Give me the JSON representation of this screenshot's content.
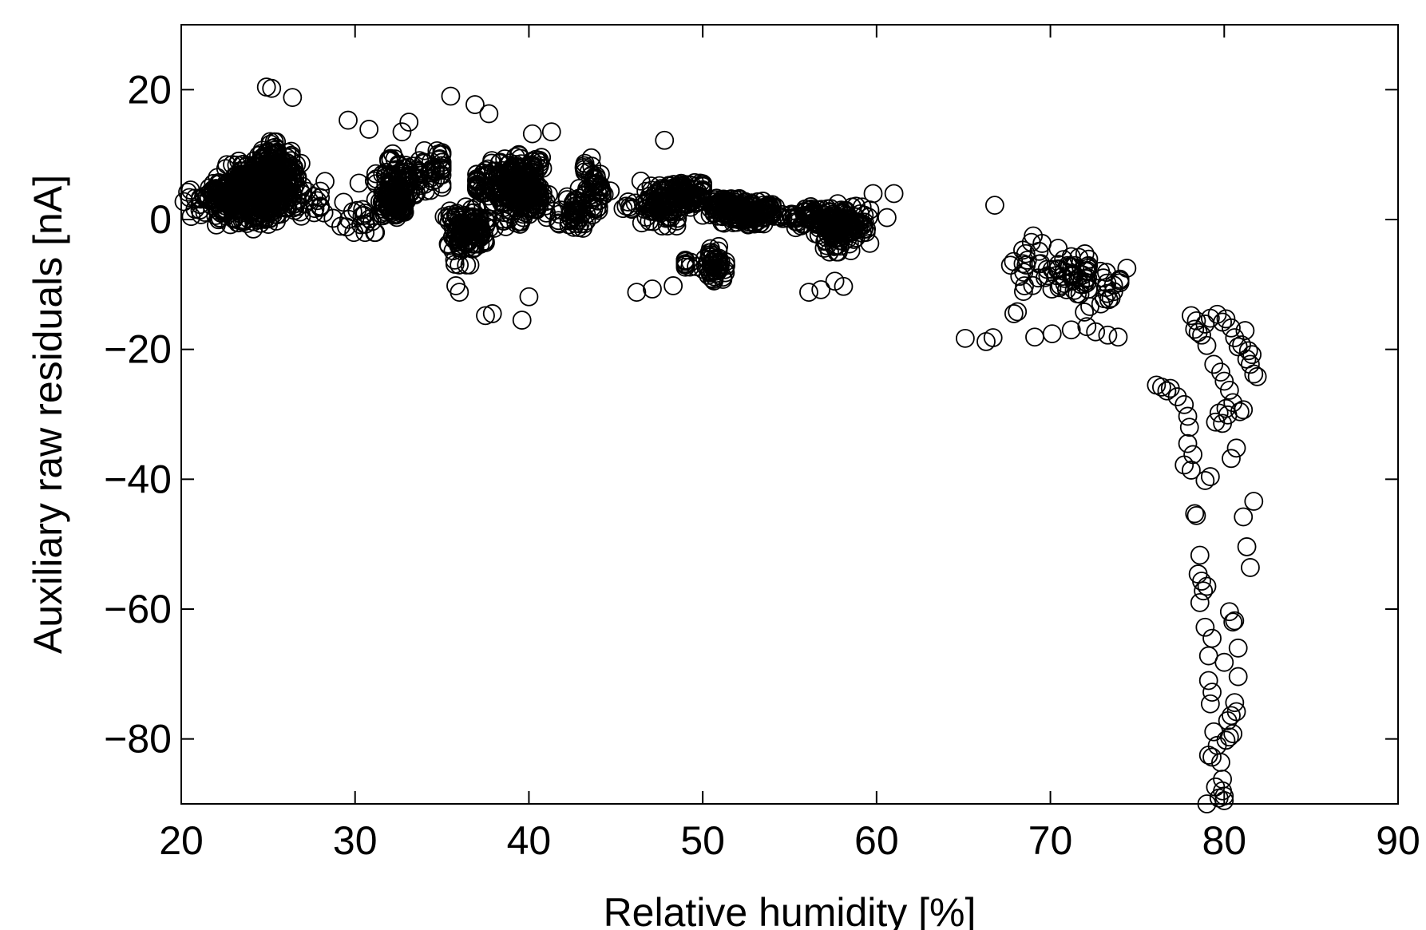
{
  "chart_data": {
    "type": "scatter",
    "title": "",
    "xlabel": "Relative humidity [%]",
    "ylabel": "Auxiliary raw residuals [nA]",
    "xlim": [
      20,
      90
    ],
    "ylim": [
      -90,
      30
    ],
    "xticks": [
      "20",
      "30",
      "40",
      "50",
      "60",
      "70",
      "80",
      "90"
    ],
    "yticks": [
      "20",
      "0",
      "−20",
      "−40",
      "−60",
      "−80"
    ],
    "xtick_values": [
      20,
      30,
      40,
      50,
      60,
      70,
      80,
      90
    ],
    "ytick_values": [
      20,
      0,
      -20,
      -40,
      -60,
      -80
    ],
    "grid": false,
    "marker": "open-circle",
    "marker_color": "#000000",
    "clusters": [
      {
        "x": [
          20,
          28
        ],
        "y": [
          -2,
          9
        ],
        "n": 420
      },
      {
        "x": [
          23,
          27
        ],
        "y": [
          0,
          12
        ],
        "n": 260
      },
      {
        "x": [
          28,
          35
        ],
        "y": [
          -2,
          14
        ],
        "n": 160
      },
      {
        "x": [
          31,
          34
        ],
        "y": [
          -1,
          4
        ],
        "n": 80
      },
      {
        "x": [
          35,
          38
        ],
        "y": [
          -7,
          4
        ],
        "n": 140
      },
      {
        "x": [
          37,
          41.5
        ],
        "y": [
          -2,
          10
        ],
        "n": 300
      },
      {
        "x": [
          41,
          45
        ],
        "y": [
          -3,
          10
        ],
        "n": 100
      },
      {
        "x": [
          45,
          50
        ],
        "y": [
          -1,
          6
        ],
        "n": 180
      },
      {
        "x": [
          49,
          52
        ],
        "y": [
          -11,
          -3
        ],
        "n": 60
      },
      {
        "x": [
          50,
          55
        ],
        "y": [
          -1,
          5
        ],
        "n": 200
      },
      {
        "x": [
          54,
          60
        ],
        "y": [
          -5,
          4
        ],
        "n": 220
      },
      {
        "x": [
          67.5,
          74
        ],
        "y": [
          -16,
          -1
        ],
        "n": 80
      }
    ],
    "points": {
      "x": [
        24.9,
        25.2,
        26.4,
        35.5,
        36.9,
        37.7,
        47.8,
        29.6,
        30.8,
        33.1,
        32.7,
        40.2,
        41.3,
        39.6,
        40.0,
        37.5,
        37.9,
        35.8,
        36.0,
        46.2,
        47.1,
        48.3,
        56.1,
        56.8,
        58.1,
        57.6,
        61.0,
        60.6,
        59.8,
        66.8,
        65.1,
        66.3,
        66.7,
        67.9,
        68.1,
        69.1,
        70.1,
        71.2,
        72.1,
        72.6,
        73.3,
        73.9,
        74.4,
        69.3,
        70.5,
        71.7,
        72.9,
        73.1,
        76.1,
        76.4,
        76.7,
        76.9,
        77.3,
        77.7,
        77.9,
        78.0,
        77.9,
        77.7,
        78.1,
        78.2,
        78.3,
        78.4,
        78.6,
        78.5,
        78.7,
        78.8,
        78.6,
        78.9,
        79.1,
        79.0,
        79.3,
        79.2,
        79.4,
        79.1,
        79.3,
        79.6,
        79.8,
        79.9,
        80.0,
        79.5,
        79.7,
        79.9,
        80.1,
        80.3,
        80.5,
        80.7,
        80.2,
        80.4,
        80.6,
        80.8,
        81.1,
        81.3,
        81.5,
        81.7,
        78.1,
        78.4,
        78.9,
        79.2,
        79.6,
        79.9,
        80.1,
        80.4,
        80.6,
        80.8,
        81.0,
        81.2,
        81.4,
        81.6,
        78.3,
        78.5,
        78.7,
        79.0,
        79.4,
        79.8,
        80.0,
        80.3,
        80.5,
        80.1,
        79.7,
        79.5,
        80.9,
        81.1,
        81.3,
        81.5,
        81.7,
        81.9,
        80.2,
        79.9,
        80.7,
        80.4,
        79.2,
        78.9,
        80.3,
        80.6,
        80.8,
        79.1,
        79.3,
        80.0,
        80.5,
        79.0,
        80.0
      ],
      "y": [
        20.4,
        20.2,
        18.8,
        19.0,
        17.7,
        16.3,
        12.2,
        15.3,
        13.9,
        15.0,
        13.5,
        13.2,
        13.5,
        -15.5,
        -11.9,
        -14.8,
        -14.5,
        -10.2,
        -11.2,
        -11.2,
        -10.7,
        -10.2,
        -11.2,
        -10.8,
        -10.3,
        -9.5,
        4.0,
        0.3,
        4.0,
        2.2,
        -18.3,
        -18.8,
        -18.2,
        -14.5,
        -14.2,
        -18.1,
        -17.6,
        -17.0,
        -16.5,
        -17.3,
        -17.8,
        -18.1,
        -7.5,
        -9.0,
        -10.5,
        -11.5,
        -13.0,
        -12.2,
        -25.5,
        -25.8,
        -26.4,
        -26.0,
        -27.3,
        -28.5,
        -30.3,
        -32.0,
        -34.5,
        -37.8,
        -38.6,
        -36.2,
        -45.3,
        -45.6,
        -51.7,
        -54.6,
        -55.7,
        -57.2,
        -59.0,
        -62.8,
        -67.2,
        -56.5,
        -72.8,
        -74.6,
        -78.9,
        -82.5,
        -82.8,
        -81.0,
        -83.6,
        -86.2,
        -89.5,
        -87.4,
        -89.1,
        -88.0,
        -80.2,
        -79.7,
        -79.2,
        -75.8,
        -77.2,
        -76.4,
        -74.4,
        -70.4,
        -45.8,
        -50.4,
        -53.6,
        -43.4,
        -14.8,
        -15.6,
        -16.1,
        -15.2,
        -14.6,
        -15.8,
        -15.3,
        -16.7,
        -18.2,
        -19.6,
        -19.3,
        -17.1,
        -20.2,
        -20.8,
        -16.9,
        -17.4,
        -17.8,
        -19.4,
        -22.3,
        -23.5,
        -24.9,
        -26.3,
        -28.2,
        -29.1,
        -29.8,
        -31.2,
        -29.6,
        -29.3,
        -21.5,
        -22.3,
        -23.8,
        -24.2,
        -30.1,
        -31.4,
        -35.2,
        -36.8,
        -39.6,
        -40.2,
        -60.4,
        -61.8,
        -66.0,
        -71.0,
        -64.5,
        -68.2,
        -62.0,
        -90.0,
        -88.8
      ]
    }
  }
}
